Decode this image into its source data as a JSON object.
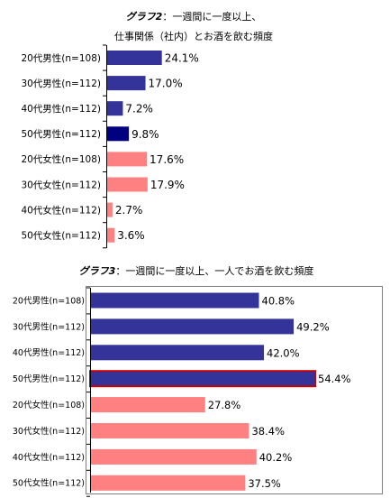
{
  "colors": {
    "male": "#333399",
    "male_highlight": "#000080",
    "female": "#ff8080",
    "highlight_border": "#cc0000",
    "axis": "#000000",
    "frame": "#7f7f7f"
  },
  "chart_data": [
    {
      "type": "bar",
      "orientation": "horizontal",
      "title_prefix": "グラフ2",
      "title_line1": "：一週間に一度以上、",
      "title_line2": "仕事関係（社内）とお酒を飲む頻度",
      "categories": [
        "20代男性(n=108)",
        "30代男性(n=112)",
        "40代男性(n=112)",
        "50代男性(n=112)",
        "20代女性(n=108)",
        "30代女性(n=112)",
        "40代女性(n=112)",
        "50代女性(n=112)"
      ],
      "values": [
        24.1,
        17.0,
        7.2,
        9.8,
        17.6,
        17.9,
        2.7,
        3.6
      ],
      "value_labels": [
        "24.1%",
        "17.0%",
        "7.2%",
        "9.8%",
        "17.6%",
        "17.9%",
        "2.7%",
        "3.6%"
      ],
      "unit": "%",
      "xlim": [
        0,
        60
      ],
      "grid": false,
      "legend": "none"
    },
    {
      "type": "bar",
      "orientation": "horizontal",
      "title_prefix": "グラフ3",
      "title_line1": "：一週間に一度以上、一人でお酒を飲む頻度",
      "categories": [
        "20代男性(n=108)",
        "30代男性(n=112)",
        "40代男性(n=112)",
        "50代男性(n=112)",
        "20代女性(n=108)",
        "30代女性(n=112)",
        "40代女性(n=112)",
        "50代女性(n=112)"
      ],
      "values": [
        40.8,
        49.2,
        42.0,
        54.4,
        27.8,
        38.4,
        40.2,
        37.5
      ],
      "value_labels": [
        "40.8%",
        "49.2%",
        "42.0%",
        "54.4%",
        "27.8%",
        "38.4%",
        "40.2%",
        "37.5%"
      ],
      "highlight_index": 3,
      "unit": "%",
      "xlim": [
        0,
        60
      ],
      "grid": false,
      "legend": "none"
    }
  ]
}
